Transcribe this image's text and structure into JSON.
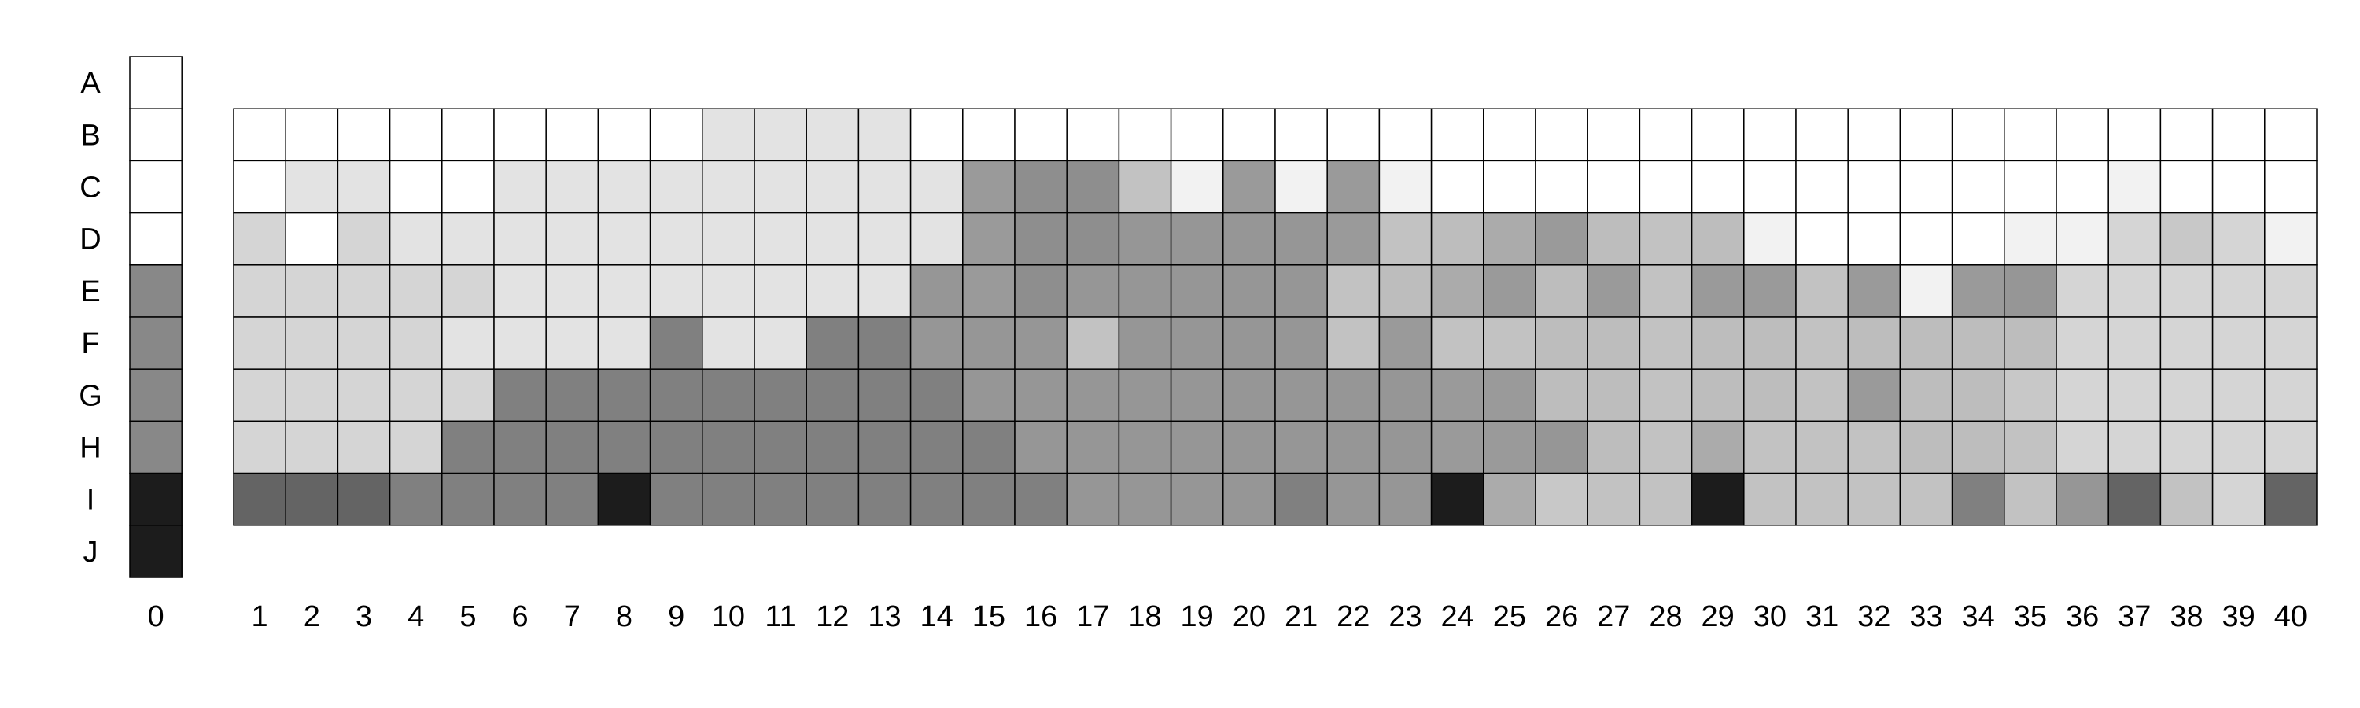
{
  "chart_data": {
    "type": "heatmap",
    "rows": [
      "A",
      "B",
      "C",
      "D",
      "E",
      "F",
      "G",
      "H",
      "I",
      "J"
    ],
    "reference_column": {
      "label": "0",
      "values": [
        "#FFFFFF",
        "#FFFFFF",
        "#FFFFFF",
        "#FFFFFF",
        "#888888",
        "#888888",
        "#888888",
        "#888888",
        "#1C1C1C",
        "#1C1C1C"
      ]
    },
    "columns": [
      "1",
      "2",
      "3",
      "4",
      "5",
      "6",
      "7",
      "8",
      "9",
      "10",
      "11",
      "12",
      "13",
      "14",
      "15",
      "16",
      "17",
      "18",
      "19",
      "20",
      "21",
      "22",
      "23",
      "24",
      "25",
      "26",
      "27",
      "28",
      "29",
      "30",
      "31",
      "32",
      "33",
      "34",
      "35",
      "36",
      "37",
      "38",
      "39",
      "40"
    ],
    "grid_rows": [
      "B",
      "C",
      "D",
      "E",
      "F",
      "G",
      "H",
      "I"
    ],
    "values": [
      [
        "#FFFFFF",
        "#FFFFFF",
        "#FFFFFF",
        "#FFFFFF",
        "#FFFFFF",
        "#FFFFFF",
        "#FFFFFF",
        "#FFFFFF",
        "#FFFFFF",
        "#E3E3E3",
        "#E3E3E3",
        "#E3E3E3",
        "#E3E3E3",
        "#FFFFFF",
        "#FFFFFF",
        "#FFFFFF",
        "#FFFFFF",
        "#FFFFFF",
        "#FFFFFF",
        "#FFFFFF",
        "#FFFFFF",
        "#FFFFFF",
        "#FFFFFF",
        "#FFFFFF",
        "#FFFFFF",
        "#FFFFFF",
        "#FFFFFF",
        "#FFFFFF",
        "#FFFFFF",
        "#FFFFFF",
        "#FFFFFF",
        "#FFFFFF",
        "#FFFFFF",
        "#FFFFFF",
        "#FFFFFF",
        "#FFFFFF",
        "#FFFFFF",
        "#FFFFFF",
        "#FFFFFF",
        "#FFFFFF"
      ],
      [
        "#FFFFFF",
        "#E3E3E3",
        "#E3E3E3",
        "#FFFFFF",
        "#FFFFFF",
        "#E3E3E3",
        "#E3E3E3",
        "#E3E3E3",
        "#E3E3E3",
        "#E3E3E3",
        "#E3E3E3",
        "#E3E3E3",
        "#E3E3E3",
        "#E3E3E3",
        "#9A9A9A",
        "#8E8E8E",
        "#8E8E8E",
        "#C2C2C2",
        "#F2F2F2",
        "#9A9A9A",
        "#F2F2F2",
        "#9A9A9A",
        "#F2F2F2",
        "#FFFFFF",
        "#FFFFFF",
        "#FFFFFF",
        "#FFFFFF",
        "#FFFFFF",
        "#FFFFFF",
        "#FFFFFF",
        "#FFFFFF",
        "#FFFFFF",
        "#FFFFFF",
        "#FFFFFF",
        "#FFFFFF",
        "#FFFFFF",
        "#F2F2F2",
        "#FFFFFF",
        "#FFFFFF",
        "#FFFFFF"
      ],
      [
        "#D5D5D5",
        "#FFFFFF",
        "#D5D5D5",
        "#E3E3E3",
        "#E3E3E3",
        "#E3E3E3",
        "#E3E3E3",
        "#E3E3E3",
        "#E3E3E3",
        "#E3E3E3",
        "#E3E3E3",
        "#E3E3E3",
        "#E3E3E3",
        "#E3E3E3",
        "#9A9A9A",
        "#8E8E8E",
        "#8E8E8E",
        "#969696",
        "#969696",
        "#969696",
        "#969696",
        "#9A9A9A",
        "#C2C2C2",
        "#BDBDBD",
        "#ABABAB",
        "#9A9A9A",
        "#BDBDBD",
        "#C2C2C2",
        "#BDBDBD",
        "#F2F2F2",
        "#FFFFFF",
        "#FFFFFF",
        "#FFFFFF",
        "#FFFFFF",
        "#F2F2F2",
        "#F2F2F2",
        "#D5D5D5",
        "#C8C8C8",
        "#D5D5D5",
        "#F2F2F2"
      ],
      [
        "#D5D5D5",
        "#D5D5D5",
        "#D5D5D5",
        "#D5D5D5",
        "#D5D5D5",
        "#E3E3E3",
        "#E3E3E3",
        "#E3E3E3",
        "#E3E3E3",
        "#E3E3E3",
        "#E3E3E3",
        "#E3E3E3",
        "#E3E3E3",
        "#969696",
        "#9A9A9A",
        "#8E8E8E",
        "#969696",
        "#969696",
        "#969696",
        "#969696",
        "#969696",
        "#C2C2C2",
        "#BDBDBD",
        "#ABABAB",
        "#9A9A9A",
        "#BDBDBD",
        "#9A9A9A",
        "#C2C2C2",
        "#9A9A9A",
        "#9A9A9A",
        "#C2C2C2",
        "#9A9A9A",
        "#F2F2F2",
        "#9A9A9A",
        "#969696",
        "#D5D5D5",
        "#D5D5D5",
        "#D5D5D5",
        "#D5D5D5",
        "#D5D5D5"
      ],
      [
        "#D5D5D5",
        "#D5D5D5",
        "#D5D5D5",
        "#D5D5D5",
        "#E3E3E3",
        "#E3E3E3",
        "#E3E3E3",
        "#E3E3E3",
        "#808080",
        "#E3E3E3",
        "#E3E3E3",
        "#808080",
        "#808080",
        "#969696",
        "#969696",
        "#969696",
        "#C2C2C2",
        "#969696",
        "#969696",
        "#969696",
        "#969696",
        "#C2C2C2",
        "#9A9A9A",
        "#C2C2C2",
        "#C2C2C2",
        "#BDBDBD",
        "#BDBDBD",
        "#C2C2C2",
        "#BDBDBD",
        "#BDBDBD",
        "#C2C2C2",
        "#BDBDBD",
        "#BDBDBD",
        "#BDBDBD",
        "#BDBDBD",
        "#D5D5D5",
        "#D5D5D5",
        "#D5D5D5",
        "#D5D5D5",
        "#D5D5D5"
      ],
      [
        "#D5D5D5",
        "#D5D5D5",
        "#D5D5D5",
        "#D5D5D5",
        "#D5D5D5",
        "#808080",
        "#808080",
        "#808080",
        "#808080",
        "#808080",
        "#808080",
        "#808080",
        "#808080",
        "#808080",
        "#969696",
        "#969696",
        "#969696",
        "#969696",
        "#969696",
        "#969696",
        "#969696",
        "#969696",
        "#969696",
        "#9A9A9A",
        "#9A9A9A",
        "#BDBDBD",
        "#BDBDBD",
        "#C2C2C2",
        "#BDBDBD",
        "#BDBDBD",
        "#C2C2C2",
        "#9A9A9A",
        "#BDBDBD",
        "#BDBDBD",
        "#C8C8C8",
        "#D5D5D5",
        "#D5D5D5",
        "#D5D5D5",
        "#D5D5D5",
        "#D5D5D5"
      ],
      [
        "#D5D5D5",
        "#D5D5D5",
        "#D5D5D5",
        "#D5D5D5",
        "#808080",
        "#808080",
        "#808080",
        "#808080",
        "#808080",
        "#808080",
        "#808080",
        "#808080",
        "#808080",
        "#808080",
        "#808080",
        "#969696",
        "#969696",
        "#969696",
        "#969696",
        "#969696",
        "#969696",
        "#969696",
        "#969696",
        "#9A9A9A",
        "#9A9A9A",
        "#969696",
        "#BDBDBD",
        "#C2C2C2",
        "#ABABAB",
        "#C2C2C2",
        "#C2C2C2",
        "#C2C2C2",
        "#BDBDBD",
        "#BDBDBD",
        "#C2C2C2",
        "#D5D5D5",
        "#D5D5D5",
        "#D5D5D5",
        "#D5D5D5",
        "#D5D5D5"
      ],
      [
        "#646464",
        "#646464",
        "#646464",
        "#808080",
        "#808080",
        "#808080",
        "#808080",
        "#1C1C1C",
        "#808080",
        "#808080",
        "#808080",
        "#808080",
        "#808080",
        "#808080",
        "#808080",
        "#808080",
        "#969696",
        "#969696",
        "#969696",
        "#969696",
        "#808080",
        "#969696",
        "#969696",
        "#1C1C1C",
        "#ABABAB",
        "#C8C8C8",
        "#C2C2C2",
        "#C2C2C2",
        "#1C1C1C",
        "#C2C2C2",
        "#C2C2C2",
        "#C2C2C2",
        "#C2C2C2",
        "#808080",
        "#C2C2C2",
        "#969696",
        "#646464",
        "#C2C2C2",
        "#D5D5D5",
        "#646464"
      ]
    ]
  }
}
